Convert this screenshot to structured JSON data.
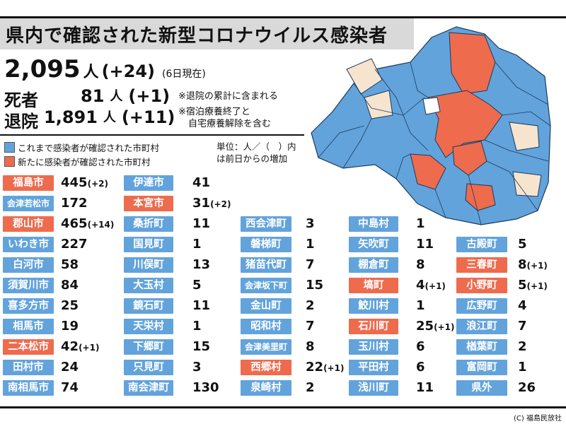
{
  "title": "県内で確認された新型コロナウイルス感染者",
  "total": {
    "count": "2,095",
    "unit": "人",
    "diff": "(+24)",
    "asof": "(6日現在)"
  },
  "deaths": {
    "label": "死者",
    "value": "81",
    "unit": "人",
    "diff": "(+1)"
  },
  "discharged": {
    "label": "退院",
    "value": "1,891",
    "unit": "人",
    "diff": "(+11)"
  },
  "notes": [
    "※退院の累計に含まれる",
    "※宿泊療養終了と",
    "自宅療養解除を含む"
  ],
  "legend": {
    "existing": "これまで感染者が確認された市町村",
    "new": "新たに感染者が確認された市町村"
  },
  "unit_note": [
    "単位：人／（　）内",
    "は前日からの増加"
  ],
  "colors": {
    "blue": "#62a3dc",
    "red": "#ee6b4d",
    "beige": "#f7e4cf",
    "white": "#ffffff"
  },
  "municipalities": [
    {
      "name": "福島市",
      "value": "445",
      "diff": "(+2)",
      "new": true
    },
    {
      "name": "会津若松市",
      "value": "172",
      "diff": "",
      "new": false
    },
    {
      "name": "郡山市",
      "value": "465",
      "diff": "(+14)",
      "new": true
    },
    {
      "name": "いわき市",
      "value": "227",
      "diff": "",
      "new": false
    },
    {
      "name": "白河市",
      "value": "58",
      "diff": "",
      "new": false
    },
    {
      "name": "須賀川市",
      "value": "84",
      "diff": "",
      "new": false
    },
    {
      "name": "喜多方市",
      "value": "25",
      "diff": "",
      "new": false
    },
    {
      "name": "相馬市",
      "value": "19",
      "diff": "",
      "new": false
    },
    {
      "name": "二本松市",
      "value": "42",
      "diff": "(+1)",
      "new": true
    },
    {
      "name": "田村市",
      "value": "24",
      "diff": "",
      "new": false
    },
    {
      "name": "南相馬市",
      "value": "74",
      "diff": "",
      "new": false
    },
    {
      "name": "伊達市",
      "value": "41",
      "diff": "",
      "new": false
    },
    {
      "name": "本宮市",
      "value": "31",
      "diff": "(+2)",
      "new": true
    },
    {
      "name": "桑折町",
      "value": "11",
      "diff": "",
      "new": false
    },
    {
      "name": "国見町",
      "value": "1",
      "diff": "",
      "new": false
    },
    {
      "name": "川俣町",
      "value": "13",
      "diff": "",
      "new": false
    },
    {
      "name": "大玉村",
      "value": "5",
      "diff": "",
      "new": false
    },
    {
      "name": "鏡石町",
      "value": "11",
      "diff": "",
      "new": false
    },
    {
      "name": "天栄村",
      "value": "1",
      "diff": "",
      "new": false
    },
    {
      "name": "下郷町",
      "value": "15",
      "diff": "",
      "new": false
    },
    {
      "name": "只見町",
      "value": "3",
      "diff": "",
      "new": false
    },
    {
      "name": "南会津町",
      "value": "130",
      "diff": "",
      "new": false
    },
    {
      "name": "西会津町",
      "value": "3",
      "diff": "",
      "new": false
    },
    {
      "name": "磐梯町",
      "value": "1",
      "diff": "",
      "new": false
    },
    {
      "name": "猪苗代町",
      "value": "7",
      "diff": "",
      "new": false
    },
    {
      "name": "会津坂下町",
      "value": "15",
      "diff": "",
      "new": false
    },
    {
      "name": "金山町",
      "value": "2",
      "diff": "",
      "new": false
    },
    {
      "name": "昭和村",
      "value": "7",
      "diff": "",
      "new": false
    },
    {
      "name": "会津美里町",
      "value": "8",
      "diff": "",
      "new": false
    },
    {
      "name": "西郷村",
      "value": "22",
      "diff": "(+1)",
      "new": true
    },
    {
      "name": "泉崎村",
      "value": "2",
      "diff": "",
      "new": false
    },
    {
      "name": "中島村",
      "value": "1",
      "diff": "",
      "new": false
    },
    {
      "name": "矢吹町",
      "value": "11",
      "diff": "",
      "new": false
    },
    {
      "name": "棚倉町",
      "value": "8",
      "diff": "",
      "new": false
    },
    {
      "name": "塙町",
      "value": "4",
      "diff": "(+1)",
      "new": true
    },
    {
      "name": "鮫川村",
      "value": "1",
      "diff": "",
      "new": false
    },
    {
      "name": "石川町",
      "value": "25",
      "diff": "(+1)",
      "new": true
    },
    {
      "name": "玉川村",
      "value": "6",
      "diff": "",
      "new": false
    },
    {
      "name": "平田村",
      "value": "6",
      "diff": "",
      "new": false
    },
    {
      "name": "浅川町",
      "value": "11",
      "diff": "",
      "new": false
    },
    {
      "name": "古殿町",
      "value": "5",
      "diff": "",
      "new": false
    },
    {
      "name": "三春町",
      "value": "8",
      "diff": "(+1)",
      "new": true
    },
    {
      "name": "小野町",
      "value": "5",
      "diff": "(+1)",
      "new": true
    },
    {
      "name": "広野町",
      "value": "4",
      "diff": "",
      "new": false
    },
    {
      "name": "浪江町",
      "value": "7",
      "diff": "",
      "new": false
    },
    {
      "name": "楢葉町",
      "value": "2",
      "diff": "",
      "new": false
    },
    {
      "name": "富岡町",
      "value": "1",
      "diff": "",
      "new": false
    },
    {
      "name": "県外",
      "value": "26",
      "diff": "",
      "new": false
    }
  ],
  "credit": "(C) 福島民放社"
}
